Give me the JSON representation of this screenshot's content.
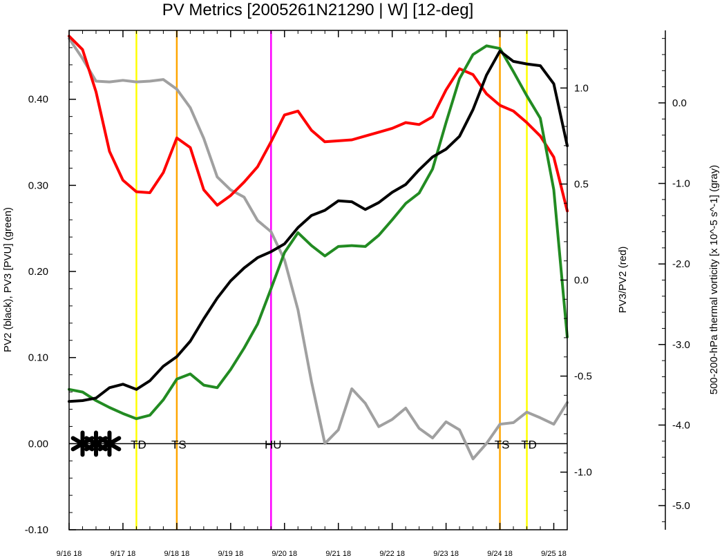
{
  "chart_data": {
    "type": "line",
    "title": "PV Metrics [2005261N21290 | W] [12-deg]",
    "left_axis": {
      "label": "PV2 (black), PV3 [PVU] (green)",
      "ylim": [
        -0.1,
        0.48
      ],
      "ticks": [
        -0.1,
        0.0,
        0.1,
        0.2,
        0.3,
        0.4
      ],
      "tick_labels": [
        "-0.10",
        "0.00",
        "0.10",
        "0.20",
        "0.30",
        "0.40"
      ]
    },
    "right_axis_1": {
      "label": "PV3/PV2 (red)",
      "ylim": [
        -1.3,
        1.3
      ],
      "ticks": [
        -1.0,
        -0.5,
        0.0,
        0.5,
        1.0
      ],
      "tick_labels": [
        "-1.0",
        "-0.5",
        "0.0",
        "0.5",
        "1.0"
      ]
    },
    "right_axis_2": {
      "label": "500-200-hPa thermal vorticity [x 10^-5 s^-1] (gray)",
      "ylim": [
        -5.3,
        0.9
      ],
      "ticks": [
        -5.0,
        -4.0,
        -3.0,
        -2.0,
        -1.0,
        0.0
      ],
      "tick_labels": [
        "-5.0",
        "-4.0",
        "-3.0",
        "-2.0",
        "-1.0",
        "0.0"
      ]
    },
    "x_axis": {
      "xlim": [
        0,
        9.25
      ],
      "ticks": [
        0,
        1,
        2,
        3,
        4,
        5,
        6,
        7,
        8,
        9
      ],
      "tick_labels": [
        "9/16 18",
        "9/17 18",
        "9/18 18",
        "9/19 18",
        "9/20 18",
        "9/21 18",
        "9/22 18",
        "9/23 18",
        "9/24 18",
        "9/25 18"
      ]
    },
    "x": [
      0,
      0.25,
      0.5,
      0.75,
      1.0,
      1.25,
      1.5,
      1.75,
      2.0,
      2.25,
      2.5,
      2.75,
      3.0,
      3.25,
      3.5,
      3.75,
      4.0,
      4.25,
      4.5,
      4.75,
      5.0,
      5.25,
      5.5,
      5.75,
      6.0,
      6.25,
      6.5,
      6.75,
      7.0,
      7.25,
      7.5,
      7.75,
      8.0,
      8.25,
      8.5,
      8.75,
      9.0,
      9.25
    ],
    "series": [
      {
        "axis": "left",
        "color": "#000000",
        "values": [
          0.049,
          0.05,
          0.053,
          0.065,
          0.069,
          0.063,
          0.073,
          0.09,
          0.101,
          0.119,
          0.145,
          0.169,
          0.189,
          0.204,
          0.216,
          0.223,
          0.232,
          0.251,
          0.265,
          0.271,
          0.282,
          0.281,
          0.272,
          0.28,
          0.292,
          0.301,
          0.318,
          0.333,
          0.342,
          0.357,
          0.388,
          0.428,
          0.456,
          0.444,
          0.441,
          0.439,
          0.418,
          0.346
        ]
      },
      {
        "axis": "left",
        "color": "#228b22",
        "values": [
          0.063,
          0.06,
          0.05,
          0.042,
          0.035,
          0.029,
          0.033,
          0.051,
          0.075,
          0.081,
          0.068,
          0.065,
          0.086,
          0.111,
          0.139,
          0.18,
          0.222,
          0.245,
          0.23,
          0.218,
          0.229,
          0.23,
          0.229,
          0.242,
          0.26,
          0.279,
          0.291,
          0.319,
          0.373,
          0.424,
          0.452,
          0.462,
          0.459,
          0.432,
          0.404,
          0.378,
          0.295,
          0.124
        ]
      },
      {
        "axis": "right1",
        "color": "#ff0000",
        "values": [
          1.27,
          1.2,
          0.98,
          0.67,
          0.52,
          0.46,
          0.455,
          0.56,
          0.74,
          0.69,
          0.47,
          0.39,
          0.44,
          0.51,
          0.59,
          0.72,
          0.86,
          0.88,
          0.78,
          0.72,
          0.725,
          0.73,
          0.75,
          0.77,
          0.79,
          0.82,
          0.81,
          0.85,
          0.99,
          1.1,
          1.07,
          0.97,
          0.91,
          0.88,
          0.82,
          0.75,
          0.64,
          0.36
        ]
      },
      {
        "axis": "right2",
        "color": "#a0a0a0",
        "values": [
          0.8,
          0.55,
          0.27,
          0.26,
          0.28,
          0.26,
          0.27,
          0.29,
          0.17,
          -0.06,
          -0.44,
          -0.92,
          -1.08,
          -1.17,
          -1.46,
          -1.6,
          -1.95,
          -2.57,
          -3.46,
          -4.23,
          -4.06,
          -3.55,
          -3.73,
          -4.02,
          -3.93,
          -3.79,
          -4.04,
          -4.16,
          -3.96,
          -4.06,
          -4.42,
          -4.23,
          -3.99,
          -3.97,
          -3.84,
          -3.91,
          -3.99,
          -3.72
        ]
      }
    ],
    "vertical_markers": [
      {
        "x": 1.25,
        "color": "#ffff00",
        "label": "TD"
      },
      {
        "x": 2.0,
        "color": "#ffa500",
        "label": "TS"
      },
      {
        "x": 3.75,
        "color": "#ff00ff",
        "label": "HU"
      },
      {
        "x": 8.0,
        "color": "#ffa500",
        "label": "TS"
      },
      {
        "x": 8.5,
        "color": "#ffff00",
        "label": "TD"
      }
    ],
    "zero_line": 0,
    "star_markers": [
      0.25,
      0.5,
      0.75
    ],
    "grid": false
  }
}
